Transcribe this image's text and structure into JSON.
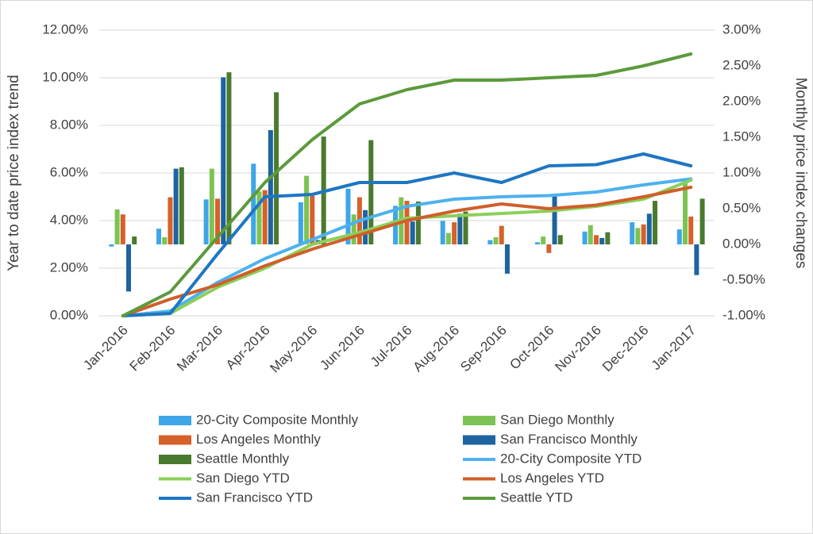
{
  "chart_data": {
    "type": "bar-line",
    "y_label": "Year to date price index trend",
    "y2_label": "Monthly price index changes",
    "categories": [
      "Jan-2016",
      "Feb-2016",
      "Mar-2016",
      "Apr-2016",
      "May-2016",
      "Jun-2016",
      "Jul-2016",
      "Aug-2016",
      "Sep-2016",
      "Oct-2016",
      "Nov-2016",
      "Dec-2016",
      "Jan-2017"
    ],
    "ylim": [
      0,
      12
    ],
    "yticks": [
      {
        "value": 0,
        "label": "0.00%"
      },
      {
        "value": 2,
        "label": "2.00%"
      },
      {
        "value": 4,
        "label": "4.00%"
      },
      {
        "value": 6,
        "label": "6.00%"
      },
      {
        "value": 8,
        "label": "8.00%"
      },
      {
        "value": 10,
        "label": "10.00%"
      },
      {
        "value": 12,
        "label": "12.00%"
      }
    ],
    "y2lim": [
      -1,
      3
    ],
    "y2ticks": [
      {
        "value": -1,
        "label": "-1.00%"
      },
      {
        "value": -0.5,
        "label": "-0.50%"
      },
      {
        "value": 0,
        "label": "0.00%"
      },
      {
        "value": 0.5,
        "label": "0.50%"
      },
      {
        "value": 1,
        "label": "1.00%"
      },
      {
        "value": 1.5,
        "label": "1.50%"
      },
      {
        "value": 2,
        "label": "2.00%"
      },
      {
        "value": 2.5,
        "label": "2.50%"
      },
      {
        "value": 3,
        "label": "3.00%"
      }
    ],
    "grid": true,
    "series": [
      {
        "name": "20-City Composite Monthly",
        "type": "bar",
        "axis": "y2",
        "color": "#3ea6e6",
        "values": [
          -0.03,
          0.22,
          0.63,
          1.13,
          0.59,
          0.78,
          0.54,
          0.33,
          0.06,
          0.03,
          0.18,
          0.31,
          0.21
        ]
      },
      {
        "name": "San Diego Monthly",
        "type": "bar",
        "axis": "y2",
        "color": "#7dc353",
        "values": [
          0.49,
          0.1,
          1.06,
          0.74,
          0.96,
          0.42,
          0.66,
          0.16,
          0.1,
          0.11,
          0.27,
          0.23,
          0.92
        ]
      },
      {
        "name": "Los Angeles Monthly",
        "type": "bar",
        "axis": "y2",
        "color": "#d4622a",
        "values": [
          0.42,
          0.66,
          0.64,
          0.76,
          0.68,
          0.66,
          0.61,
          0.31,
          0.26,
          -0.12,
          0.13,
          0.28,
          0.39
        ]
      },
      {
        "name": "San Francisco Monthly",
        "type": "bar",
        "axis": "y2",
        "color": "#1d64a0",
        "values": [
          -0.66,
          1.06,
          2.34,
          1.6,
          0.06,
          0.48,
          0.32,
          0.43,
          -0.41,
          0.67,
          0.09,
          0.43,
          -0.43
        ]
      },
      {
        "name": "Seattle Monthly",
        "type": "bar",
        "axis": "y2",
        "color": "#4a7a2e",
        "values": [
          0.11,
          1.08,
          2.41,
          2.13,
          1.51,
          1.46,
          0.6,
          0.46,
          0,
          0.13,
          0.17,
          0.61,
          0.64
        ]
      },
      {
        "name": "20-City Composite YTD",
        "type": "line",
        "color": "#4db1ee",
        "values": [
          0,
          0.2,
          1.4,
          2.4,
          3.2,
          4.0,
          4.6,
          4.9,
          5.0,
          5.05,
          5.2,
          5.5,
          5.75
        ]
      },
      {
        "name": "San Diego YTD",
        "type": "line",
        "color": "#8ccf5a",
        "values": [
          0,
          0.1,
          1.2,
          2.0,
          3.0,
          3.5,
          4.1,
          4.2,
          4.3,
          4.4,
          4.6,
          4.9,
          5.7
        ]
      },
      {
        "name": "Los Angeles YTD",
        "type": "line",
        "color": "#cf5f2a",
        "values": [
          0,
          0.7,
          1.3,
          2.1,
          2.8,
          3.4,
          4.0,
          4.4,
          4.7,
          4.5,
          4.65,
          5.0,
          5.4
        ]
      },
      {
        "name": "San Francisco YTD",
        "type": "line",
        "color": "#1f76c2",
        "values": [
          0,
          0.1,
          2.6,
          5.0,
          5.1,
          5.6,
          5.6,
          6.0,
          5.6,
          6.3,
          6.35,
          6.8,
          6.3
        ]
      },
      {
        "name": "Seattle YTD",
        "type": "line",
        "color": "#5c9a3b",
        "values": [
          0,
          1.0,
          3.3,
          5.6,
          7.4,
          8.9,
          9.5,
          9.9,
          9.9,
          10.0,
          10.1,
          10.5,
          11.0
        ]
      }
    ]
  }
}
